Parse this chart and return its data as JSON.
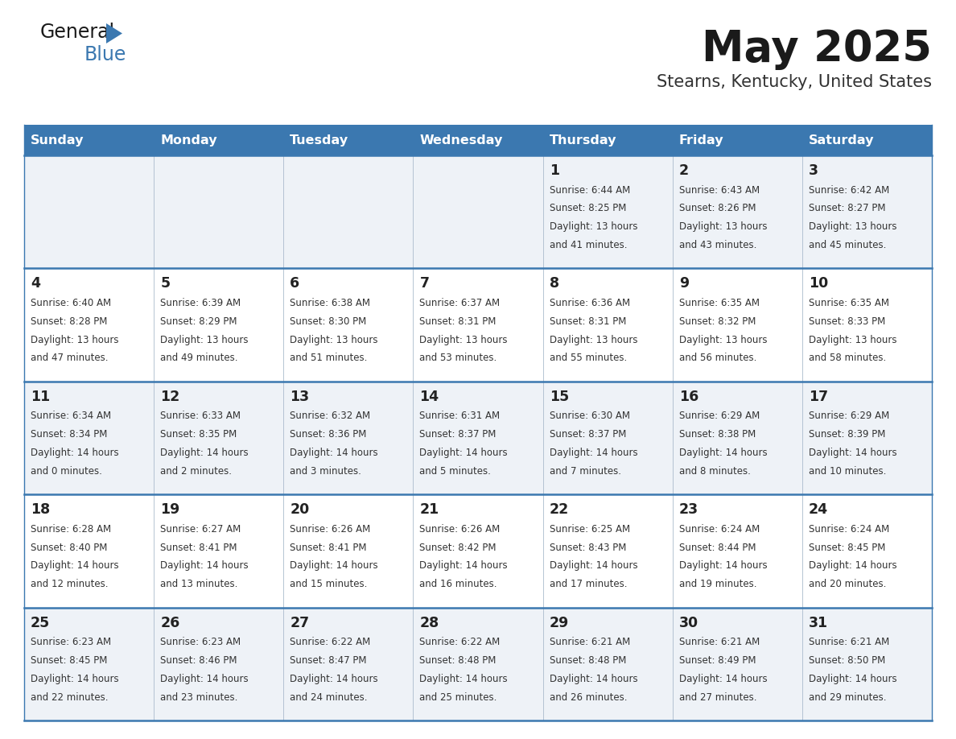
{
  "title": "May 2025",
  "subtitle": "Stearns, Kentucky, United States",
  "days_of_week": [
    "Sunday",
    "Monday",
    "Tuesday",
    "Wednesday",
    "Thursday",
    "Friday",
    "Saturday"
  ],
  "header_bg": "#3b78b0",
  "header_text_color": "#ffffff",
  "row_bg_odd": "#eef2f7",
  "row_bg_even": "#ffffff",
  "divider_color": "#3b78b0",
  "cell_line_color": "#bbccdd",
  "text_color": "#333333",
  "day_num_color": "#222222",
  "title_color": "#1a1a1a",
  "subtitle_color": "#333333",
  "logo_general_color": "#1a1a1a",
  "logo_blue_color": "#3b78b0",
  "logo_triangle_color": "#3b78b0",
  "calendar": [
    [
      {
        "day": "",
        "sunrise": "",
        "sunset": "",
        "daylight": ""
      },
      {
        "day": "",
        "sunrise": "",
        "sunset": "",
        "daylight": ""
      },
      {
        "day": "",
        "sunrise": "",
        "sunset": "",
        "daylight": ""
      },
      {
        "day": "",
        "sunrise": "",
        "sunset": "",
        "daylight": ""
      },
      {
        "day": "1",
        "sunrise": "6:44 AM",
        "sunset": "8:25 PM",
        "daylight": "13 hours and 41 minutes."
      },
      {
        "day": "2",
        "sunrise": "6:43 AM",
        "sunset": "8:26 PM",
        "daylight": "13 hours and 43 minutes."
      },
      {
        "day": "3",
        "sunrise": "6:42 AM",
        "sunset": "8:27 PM",
        "daylight": "13 hours and 45 minutes."
      }
    ],
    [
      {
        "day": "4",
        "sunrise": "6:40 AM",
        "sunset": "8:28 PM",
        "daylight": "13 hours and 47 minutes."
      },
      {
        "day": "5",
        "sunrise": "6:39 AM",
        "sunset": "8:29 PM",
        "daylight": "13 hours and 49 minutes."
      },
      {
        "day": "6",
        "sunrise": "6:38 AM",
        "sunset": "8:30 PM",
        "daylight": "13 hours and 51 minutes."
      },
      {
        "day": "7",
        "sunrise": "6:37 AM",
        "sunset": "8:31 PM",
        "daylight": "13 hours and 53 minutes."
      },
      {
        "day": "8",
        "sunrise": "6:36 AM",
        "sunset": "8:31 PM",
        "daylight": "13 hours and 55 minutes."
      },
      {
        "day": "9",
        "sunrise": "6:35 AM",
        "sunset": "8:32 PM",
        "daylight": "13 hours and 56 minutes."
      },
      {
        "day": "10",
        "sunrise": "6:35 AM",
        "sunset": "8:33 PM",
        "daylight": "13 hours and 58 minutes."
      }
    ],
    [
      {
        "day": "11",
        "sunrise": "6:34 AM",
        "sunset": "8:34 PM",
        "daylight": "14 hours and 0 minutes."
      },
      {
        "day": "12",
        "sunrise": "6:33 AM",
        "sunset": "8:35 PM",
        "daylight": "14 hours and 2 minutes."
      },
      {
        "day": "13",
        "sunrise": "6:32 AM",
        "sunset": "8:36 PM",
        "daylight": "14 hours and 3 minutes."
      },
      {
        "day": "14",
        "sunrise": "6:31 AM",
        "sunset": "8:37 PM",
        "daylight": "14 hours and 5 minutes."
      },
      {
        "day": "15",
        "sunrise": "6:30 AM",
        "sunset": "8:37 PM",
        "daylight": "14 hours and 7 minutes."
      },
      {
        "day": "16",
        "sunrise": "6:29 AM",
        "sunset": "8:38 PM",
        "daylight": "14 hours and 8 minutes."
      },
      {
        "day": "17",
        "sunrise": "6:29 AM",
        "sunset": "8:39 PM",
        "daylight": "14 hours and 10 minutes."
      }
    ],
    [
      {
        "day": "18",
        "sunrise": "6:28 AM",
        "sunset": "8:40 PM",
        "daylight": "14 hours and 12 minutes."
      },
      {
        "day": "19",
        "sunrise": "6:27 AM",
        "sunset": "8:41 PM",
        "daylight": "14 hours and 13 minutes."
      },
      {
        "day": "20",
        "sunrise": "6:26 AM",
        "sunset": "8:41 PM",
        "daylight": "14 hours and 15 minutes."
      },
      {
        "day": "21",
        "sunrise": "6:26 AM",
        "sunset": "8:42 PM",
        "daylight": "14 hours and 16 minutes."
      },
      {
        "day": "22",
        "sunrise": "6:25 AM",
        "sunset": "8:43 PM",
        "daylight": "14 hours and 17 minutes."
      },
      {
        "day": "23",
        "sunrise": "6:24 AM",
        "sunset": "8:44 PM",
        "daylight": "14 hours and 19 minutes."
      },
      {
        "day": "24",
        "sunrise": "6:24 AM",
        "sunset": "8:45 PM",
        "daylight": "14 hours and 20 minutes."
      }
    ],
    [
      {
        "day": "25",
        "sunrise": "6:23 AM",
        "sunset": "8:45 PM",
        "daylight": "14 hours and 22 minutes."
      },
      {
        "day": "26",
        "sunrise": "6:23 AM",
        "sunset": "8:46 PM",
        "daylight": "14 hours and 23 minutes."
      },
      {
        "day": "27",
        "sunrise": "6:22 AM",
        "sunset": "8:47 PM",
        "daylight": "14 hours and 24 minutes."
      },
      {
        "day": "28",
        "sunrise": "6:22 AM",
        "sunset": "8:48 PM",
        "daylight": "14 hours and 25 minutes."
      },
      {
        "day": "29",
        "sunrise": "6:21 AM",
        "sunset": "8:48 PM",
        "daylight": "14 hours and 26 minutes."
      },
      {
        "day": "30",
        "sunrise": "6:21 AM",
        "sunset": "8:49 PM",
        "daylight": "14 hours and 27 minutes."
      },
      {
        "day": "31",
        "sunrise": "6:21 AM",
        "sunset": "8:50 PM",
        "daylight": "14 hours and 29 minutes."
      }
    ]
  ]
}
